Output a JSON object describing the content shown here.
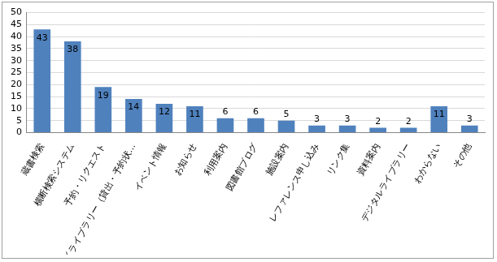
{
  "chart_data": {
    "type": "bar",
    "categories": [
      "蔵書検索",
      "横断検索システム",
      "予約・リクエスト",
      "マイライブラリー（貸出・予約状…",
      "イベント情報",
      "お知らせ",
      "利用案内",
      "図書館ブログ",
      "施設案内",
      "レファレンス申し込み",
      "リンク集",
      "資料案内",
      "デジタルライブラリー",
      "わからない",
      "その他"
    ],
    "values": [
      43,
      38,
      19,
      14,
      12,
      11,
      6,
      6,
      5,
      3,
      3,
      2,
      2,
      11,
      3
    ],
    "color": "#4f81bd",
    "ylim": [
      0,
      50
    ],
    "yticks": [
      0,
      5,
      10,
      15,
      20,
      25,
      30,
      35,
      40,
      45,
      50
    ],
    "grid": true,
    "data_labels": true
  }
}
